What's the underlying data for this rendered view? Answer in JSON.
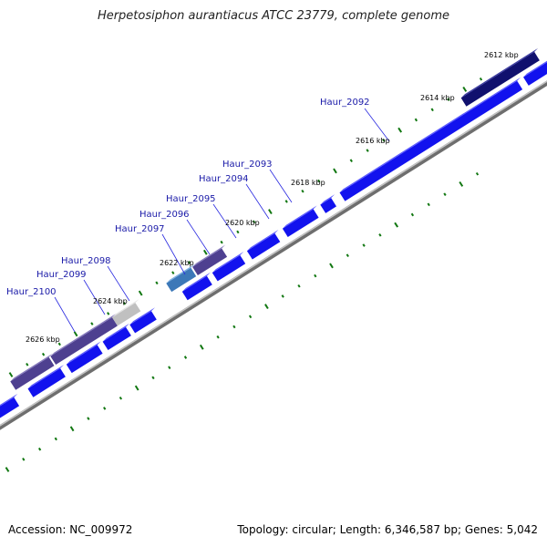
{
  "title": "Herpetosiphon aurantiacus ATCC 23779, complete genome",
  "footer": {
    "accession": "Accession: NC_009972",
    "stats": "Topology: circular; Length: 6,346,587 bp; Genes: 5,042"
  },
  "colors": {
    "backbone": "#888888",
    "forward_gene": "#1010ee",
    "reverse_gene": "#50428c",
    "tick": "#117711",
    "label": "#1a1aa8"
  },
  "kbp_labels": [
    {
      "text": "2612 kbp",
      "position_kbp": 2612
    },
    {
      "text": "2614 kbp",
      "position_kbp": 2614
    },
    {
      "text": "2616 kbp",
      "position_kbp": 2616
    },
    {
      "text": "2618 kbp",
      "position_kbp": 2618
    },
    {
      "text": "2620 kbp",
      "position_kbp": 2620
    },
    {
      "text": "2622 kbp",
      "position_kbp": 2622
    },
    {
      "text": "2624 kbp",
      "position_kbp": 2624
    },
    {
      "text": "2626 kbp",
      "position_kbp": 2626
    }
  ],
  "gene_labels": [
    {
      "text": "Haur_2092",
      "gene": "Haur_2092"
    },
    {
      "text": "Haur_2093",
      "gene": "Haur_2093"
    },
    {
      "text": "Haur_2094",
      "gene": "Haur_2094"
    },
    {
      "text": "Haur_2095",
      "gene": "Haur_2095"
    },
    {
      "text": "Haur_2096",
      "gene": "Haur_2096"
    },
    {
      "text": "Haur_2097",
      "gene": "Haur_2097"
    },
    {
      "text": "Haur_2098",
      "gene": "Haur_2098"
    },
    {
      "text": "Haur_2099",
      "gene": "Haur_2099"
    },
    {
      "text": "Haur_2100",
      "gene": "Haur_2100"
    }
  ]
}
